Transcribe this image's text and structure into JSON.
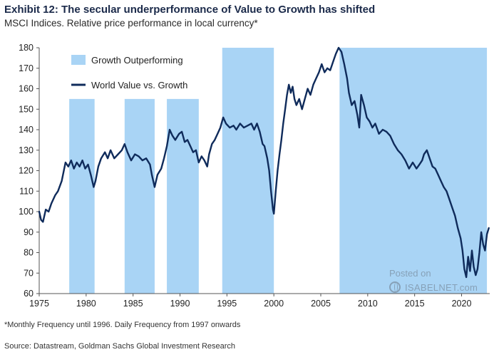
{
  "header": {
    "title": "Exhibit 12: The secular underperformance of Value to Growth has shifted",
    "subtitle": "MSCI Indices. Relative price performance in local currency*"
  },
  "footnote": "*Monthly Frequency until 1996. Daily Frequency from 1997 onwards",
  "source": "Source: Datastream, Goldman Sachs Global Investment Research",
  "watermark": {
    "line1": "Posted on",
    "line2": "ISABELNET.com"
  },
  "colors": {
    "line": "#0f2b5b",
    "shade": "#a9d4f5",
    "axis": "#555555"
  },
  "chart_data": {
    "type": "line",
    "title": "",
    "xlabel": "",
    "ylabel": "",
    "xlim": [
      1975,
      2023
    ],
    "ylim": [
      60,
      180
    ],
    "x_ticks": [
      1975,
      1980,
      1985,
      1990,
      1995,
      2000,
      2005,
      2010,
      2015,
      2020
    ],
    "y_ticks": [
      60,
      70,
      80,
      90,
      100,
      110,
      120,
      130,
      140,
      150,
      160,
      170,
      180
    ],
    "legend": {
      "position": "top-left",
      "items": [
        {
          "label": "Growth Outperforming",
          "kind": "shade"
        },
        {
          "label": "World Value vs. Growth",
          "kind": "line"
        }
      ]
    },
    "shaded_periods": [
      {
        "start": 1978.2,
        "end": 1980.9,
        "top": 155
      },
      {
        "start": 1984.1,
        "end": 1987.3,
        "top": 155
      },
      {
        "start": 1988.6,
        "end": 1992.0,
        "top": 155
      },
      {
        "start": 1994.5,
        "end": 2000.0,
        "top": 180
      },
      {
        "start": 2007.0,
        "end": 2022.7,
        "top": 180
      }
    ],
    "series": [
      {
        "name": "World Value vs. Growth",
        "points": [
          [
            1975.0,
            100
          ],
          [
            1975.2,
            96
          ],
          [
            1975.4,
            95
          ],
          [
            1975.7,
            101
          ],
          [
            1976.0,
            100
          ],
          [
            1976.3,
            104
          ],
          [
            1976.7,
            108
          ],
          [
            1977.0,
            110
          ],
          [
            1977.4,
            115
          ],
          [
            1977.8,
            124
          ],
          [
            1978.1,
            122
          ],
          [
            1978.4,
            125
          ],
          [
            1978.7,
            121
          ],
          [
            1979.0,
            124
          ],
          [
            1979.3,
            122
          ],
          [
            1979.6,
            125
          ],
          [
            1979.9,
            121
          ],
          [
            1980.2,
            123
          ],
          [
            1980.5,
            118
          ],
          [
            1980.8,
            112
          ],
          [
            1981.0,
            115
          ],
          [
            1981.3,
            122
          ],
          [
            1981.6,
            126
          ],
          [
            1982.0,
            129
          ],
          [
            1982.3,
            126
          ],
          [
            1982.6,
            130
          ],
          [
            1983.0,
            126
          ],
          [
            1983.4,
            128
          ],
          [
            1983.8,
            130
          ],
          [
            1984.1,
            133
          ],
          [
            1984.4,
            129
          ],
          [
            1984.8,
            125
          ],
          [
            1985.2,
            128
          ],
          [
            1985.6,
            127
          ],
          [
            1986.0,
            125
          ],
          [
            1986.4,
            126
          ],
          [
            1986.8,
            123
          ],
          [
            1987.0,
            118
          ],
          [
            1987.3,
            112
          ],
          [
            1987.6,
            118
          ],
          [
            1988.0,
            121
          ],
          [
            1988.3,
            126
          ],
          [
            1988.6,
            132
          ],
          [
            1988.9,
            140
          ],
          [
            1989.2,
            137
          ],
          [
            1989.5,
            135
          ],
          [
            1989.9,
            138
          ],
          [
            1990.2,
            139
          ],
          [
            1990.5,
            134
          ],
          [
            1990.8,
            135
          ],
          [
            1991.1,
            132
          ],
          [
            1991.4,
            129
          ],
          [
            1991.7,
            130
          ],
          [
            1992.0,
            124
          ],
          [
            1992.3,
            127
          ],
          [
            1992.6,
            125
          ],
          [
            1992.9,
            122
          ],
          [
            1993.1,
            128
          ],
          [
            1993.4,
            133
          ],
          [
            1993.7,
            135
          ],
          [
            1994.0,
            138
          ],
          [
            1994.3,
            141
          ],
          [
            1994.6,
            146
          ],
          [
            1994.9,
            143
          ],
          [
            1995.3,
            141
          ],
          [
            1995.7,
            142
          ],
          [
            1996.0,
            140
          ],
          [
            1996.4,
            143
          ],
          [
            1996.8,
            141
          ],
          [
            1997.2,
            142
          ],
          [
            1997.6,
            143
          ],
          [
            1997.9,
            140
          ],
          [
            1998.2,
            143
          ],
          [
            1998.5,
            139
          ],
          [
            1998.8,
            133
          ],
          [
            1999.0,
            132
          ],
          [
            1999.3,
            126
          ],
          [
            1999.5,
            120
          ],
          [
            1999.7,
            110
          ],
          [
            1999.9,
            101
          ],
          [
            2000.0,
            99
          ],
          [
            2000.2,
            110
          ],
          [
            2000.4,
            120
          ],
          [
            2000.6,
            128
          ],
          [
            2000.8,
            135
          ],
          [
            2001.0,
            143
          ],
          [
            2001.2,
            150
          ],
          [
            2001.4,
            157
          ],
          [
            2001.6,
            162
          ],
          [
            2001.8,
            158
          ],
          [
            2002.0,
            161
          ],
          [
            2002.2,
            155
          ],
          [
            2002.4,
            152
          ],
          [
            2002.7,
            155
          ],
          [
            2003.0,
            150
          ],
          [
            2003.3,
            155
          ],
          [
            2003.6,
            160
          ],
          [
            2003.9,
            157
          ],
          [
            2004.2,
            162
          ],
          [
            2004.5,
            165
          ],
          [
            2004.8,
            168
          ],
          [
            2005.1,
            172
          ],
          [
            2005.4,
            168
          ],
          [
            2005.7,
            170
          ],
          [
            2006.0,
            169
          ],
          [
            2006.3,
            173
          ],
          [
            2006.6,
            177
          ],
          [
            2006.9,
            180
          ],
          [
            2007.2,
            178
          ],
          [
            2007.5,
            172
          ],
          [
            2007.8,
            165
          ],
          [
            2008.0,
            158
          ],
          [
            2008.3,
            152
          ],
          [
            2008.6,
            154
          ],
          [
            2008.9,
            147
          ],
          [
            2009.1,
            141
          ],
          [
            2009.3,
            157
          ],
          [
            2009.6,
            152
          ],
          [
            2009.9,
            146
          ],
          [
            2010.2,
            144
          ],
          [
            2010.5,
            141
          ],
          [
            2010.8,
            143
          ],
          [
            2011.2,
            138
          ],
          [
            2011.6,
            140
          ],
          [
            2012.0,
            139
          ],
          [
            2012.4,
            137
          ],
          [
            2012.8,
            133
          ],
          [
            2013.2,
            130
          ],
          [
            2013.6,
            128
          ],
          [
            2014.0,
            125
          ],
          [
            2014.4,
            121
          ],
          [
            2014.8,
            124
          ],
          [
            2015.2,
            121
          ],
          [
            2015.5,
            123
          ],
          [
            2015.8,
            125
          ],
          [
            2016.0,
            128
          ],
          [
            2016.3,
            130
          ],
          [
            2016.6,
            126
          ],
          [
            2016.9,
            122
          ],
          [
            2017.2,
            121
          ],
          [
            2017.5,
            118
          ],
          [
            2017.8,
            115
          ],
          [
            2018.1,
            112
          ],
          [
            2018.4,
            110
          ],
          [
            2018.7,
            106
          ],
          [
            2019.0,
            102
          ],
          [
            2019.3,
            98
          ],
          [
            2019.6,
            92
          ],
          [
            2019.9,
            87
          ],
          [
            2020.1,
            81
          ],
          [
            2020.3,
            72
          ],
          [
            2020.5,
            68
          ],
          [
            2020.7,
            78
          ],
          [
            2020.9,
            71
          ],
          [
            2021.1,
            81
          ],
          [
            2021.3,
            73
          ],
          [
            2021.5,
            69
          ],
          [
            2021.7,
            72
          ],
          [
            2021.9,
            80
          ],
          [
            2022.1,
            90
          ],
          [
            2022.3,
            84
          ],
          [
            2022.5,
            81
          ],
          [
            2022.7,
            89
          ],
          [
            2022.9,
            92
          ]
        ]
      }
    ]
  }
}
